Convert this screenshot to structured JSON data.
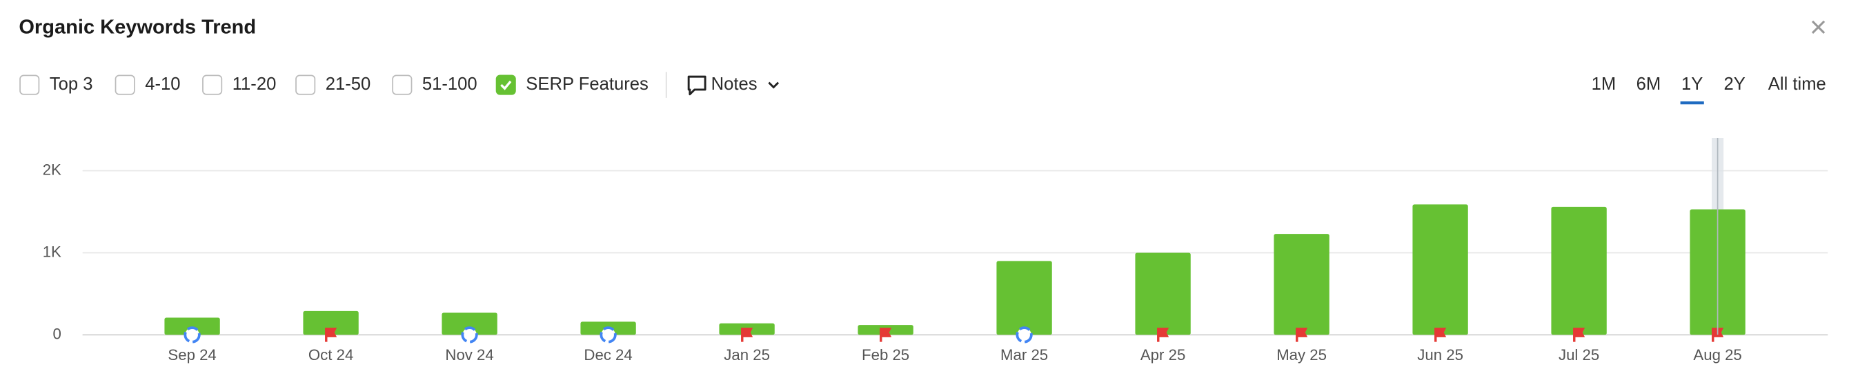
{
  "header": {
    "title": "Organic Keywords Trend"
  },
  "filters": [
    {
      "label": "Top 3",
      "checked": false
    },
    {
      "label": "4-10",
      "checked": false
    },
    {
      "label": "11-20",
      "checked": false
    },
    {
      "label": "21-50",
      "checked": false
    },
    {
      "label": "51-100",
      "checked": false
    },
    {
      "label": "SERP Features",
      "checked": true
    }
  ],
  "notes": "Notes",
  "periods": [
    "1M",
    "6M",
    "1Y",
    "2Y",
    "All time"
  ],
  "active_period": 2,
  "chart_data": {
    "type": "bar",
    "categories": [
      "Sep 24",
      "Oct 24",
      "Nov 24",
      "Dec 24",
      "Jan 25",
      "Feb 25",
      "Mar 25",
      "Apr 25",
      "May 25",
      "Jun 25",
      "Jul 25",
      "Aug 25"
    ],
    "values": [
      210,
      290,
      270,
      160,
      140,
      120,
      900,
      1000,
      1230,
      1590,
      1560,
      1530
    ],
    "color": "#66c133",
    "ylim": [
      0,
      2400
    ],
    "yticks": [
      0,
      {
        "value": 1000,
        "label": "1K"
      },
      {
        "value": 2000,
        "label": "2K"
      }
    ],
    "grid": true
  }
}
